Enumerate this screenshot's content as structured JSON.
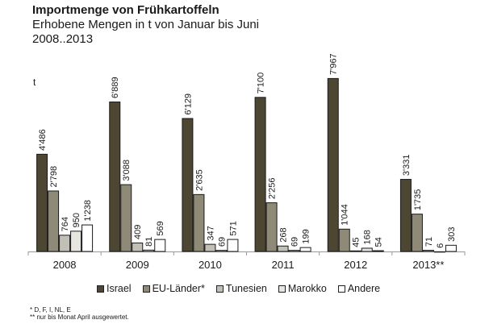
{
  "chart_data": {
    "type": "bar",
    "title": "Importmenge von Frühkartoffeln",
    "subtitle": "Erhobene Mengen in t von Januar bis Juni",
    "period": "2008..2013",
    "ylabel": "t",
    "xlabel": "",
    "ylim": [
      0,
      8000
    ],
    "grid": false,
    "legend_position": "bottom",
    "categories": [
      "2008",
      "2009",
      "2010",
      "2011",
      "2012",
      "2013**"
    ],
    "series": [
      {
        "name": "Israel",
        "color": "#4d4632",
        "values": [
          4486,
          6889,
          6129,
          7100,
          7967,
          3331
        ],
        "labels": [
          "4'486",
          "6'889",
          "6'129",
          "7'100",
          "7'967",
          "3'331"
        ]
      },
      {
        "name": "EU-Länder*",
        "color": "#8f8a78",
        "values": [
          2798,
          3088,
          2635,
          2256,
          1044,
          1735
        ],
        "labels": [
          "2'798",
          "3'088",
          "2'635",
          "2'256",
          "1'044",
          "1'735"
        ]
      },
      {
        "name": "Tunesien",
        "color": "#c2c0b6",
        "values": [
          764,
          409,
          347,
          268,
          45,
          71
        ],
        "labels": [
          "764",
          "409",
          "347",
          "268",
          "45",
          "71"
        ]
      },
      {
        "name": "Marokko",
        "color": "#e6e5e0",
        "values": [
          950,
          81,
          69,
          69,
          168,
          6
        ],
        "labels": [
          "950",
          "81",
          "69",
          "69",
          "168",
          "6"
        ]
      },
      {
        "name": "Andere",
        "color": "#ffffff",
        "values": [
          1238,
          569,
          571,
          199,
          54,
          303
        ],
        "labels": [
          "1'238",
          "569",
          "571",
          "199",
          "54",
          "303"
        ]
      }
    ],
    "footnotes": [
      "* D, F, I, NL, E",
      "** nur bis Monat April ausgewertet."
    ]
  }
}
